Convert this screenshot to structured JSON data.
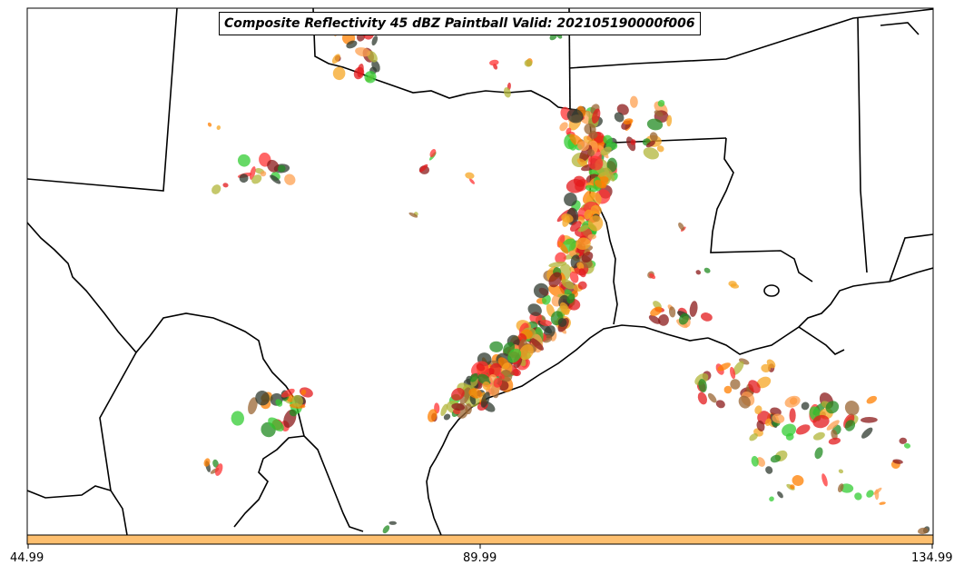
{
  "title": "Composite Reflectivity 45 dBZ Paintball Valid: 202105190000f006",
  "colorbar": {
    "color": "#FDBF6F",
    "ticks": [
      "44.99",
      "89.99",
      "134.99"
    ]
  },
  "paintball_colors": [
    "#33CC33",
    "#228B22",
    "#FF3333",
    "#E31A1C",
    "#FF7F00",
    "#FDA050",
    "#F5A623",
    "#B2B53A",
    "#8B1A1A",
    "#2F3A2F",
    "#996633"
  ],
  "icons": [
    "state-boundary-lines",
    "coastline"
  ]
}
